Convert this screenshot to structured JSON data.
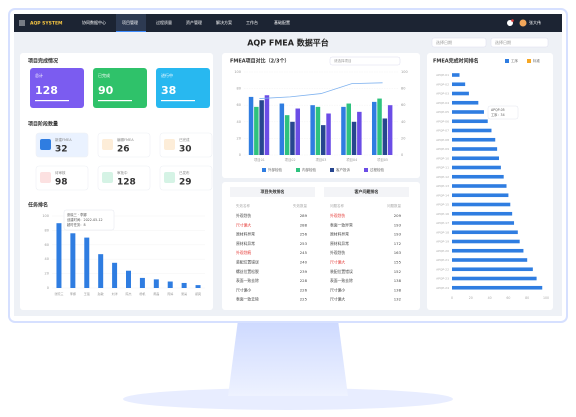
{
  "nav": {
    "logo": "AQP SYSTEM",
    "items": [
      "协同数据中心",
      "项目管理",
      "过程质量",
      "资产管理",
      "解决方案",
      "工作台",
      "基础配置"
    ],
    "active": 1,
    "user": "张大伟"
  },
  "header": {
    "title": "AQP FMEA 数据平台",
    "date_start": "选择日期",
    "date_end": "选择日期"
  },
  "project_status": {
    "title": "项目完成情况",
    "cards": [
      {
        "label": "总计",
        "value": 128
      },
      {
        "label": "已完成",
        "value": 90
      },
      {
        "label": "进行中",
        "value": 38
      }
    ]
  },
  "stages": {
    "title": "项目阶段数量",
    "cards": [
      {
        "label": "新建FMEA",
        "value": 32
      },
      {
        "label": "编辑FMEA",
        "value": 26
      },
      {
        "label": "已完成",
        "value": 30
      },
      {
        "label": "待审核",
        "value": 98
      },
      {
        "label": "审批中",
        "value": 128
      },
      {
        "label": "已发布",
        "value": 29
      }
    ]
  },
  "chart_data": [
    {
      "type": "bar",
      "title": "任务排名",
      "categories": [
        "张晓三",
        "李娜",
        "王强",
        "赵敏",
        "刘洋",
        "陈杰",
        "杨帆",
        "黄磊",
        "周婷",
        "吴昊",
        "郑爽"
      ],
      "values": [
        90,
        76,
        70,
        47,
        35,
        24,
        14,
        12,
        9,
        7,
        4
      ],
      "color": "#2f7de1",
      "ylim": [
        0,
        100
      ],
      "yticks": [
        0,
        20,
        40,
        60,
        80,
        100
      ],
      "tooltip": [
        "张晓三 · 李娜",
        "创建时间：2022-05-12",
        "超时任务：8"
      ]
    },
    {
      "type": "grouped-bar",
      "title": "FMEA项目对比（2/3个）",
      "select_label": "请选择项目",
      "categories": [
        "项目01",
        "项目02",
        "项目03",
        "项目04",
        "项目05"
      ],
      "series": [
        {
          "name": "外部检验",
          "color": "#2f7de1",
          "values": [
            70,
            62,
            60,
            58,
            64
          ]
        },
        {
          "name": "内部检验",
          "color": "#2ec27e",
          "values": [
            58,
            48,
            58,
            62,
            68
          ]
        },
        {
          "name": "客户投诉",
          "color": "#27468f",
          "values": [
            66,
            40,
            36,
            40,
            44
          ]
        },
        {
          "name": "过程检验",
          "color": "#6b4de6",
          "values": [
            72,
            56,
            50,
            52,
            60
          ]
        }
      ],
      "line": {
        "color": "#7fb2ef",
        "axis": "y2",
        "values": [
          68,
          70,
          74,
          86,
          87
        ]
      },
      "ylim": [
        0,
        100
      ],
      "yticks": [
        0,
        20,
        40,
        60,
        80,
        100
      ],
      "y2lim": [
        0,
        100
      ],
      "y2ticks": [
        0,
        20,
        40,
        60,
        80,
        100
      ],
      "grid": true
    },
    {
      "type": "hbar",
      "title": "FMEA完成时间排名",
      "legend": [
        {
          "name": "工序",
          "color": "#2f7de1"
        },
        {
          "name": "标准",
          "color": "#f5a623"
        }
      ],
      "categories": [
        "APQP-01",
        "APQP-02",
        "APQP-03",
        "APQP-04",
        "APQP-05",
        "APQP-06",
        "APQP-07",
        "APQP-08",
        "APQP-09",
        "APQP-10",
        "APQP-11",
        "APQP-12",
        "APQP-13",
        "APQP-14",
        "APQP-15",
        "APQP-16",
        "APQP-17",
        "APQP-18",
        "APQP-19",
        "APQP-20",
        "APQP-21",
        "APQP-22",
        "APQP-23",
        "APQP-24"
      ],
      "values": [
        8,
        14,
        18,
        28,
        34,
        38,
        42,
        46,
        48,
        50,
        52,
        55,
        58,
        60,
        62,
        64,
        66,
        70,
        72,
        76,
        80,
        86,
        90,
        96
      ],
      "xlim": [
        0,
        100
      ],
      "xticks": [
        0,
        20,
        40,
        60,
        80,
        100
      ],
      "tooltip": [
        "APQP-05",
        "工序：34"
      ]
    }
  ],
  "tables": [
    {
      "title": "项目失效排名",
      "columns": [
        "失效名称",
        "失效数量"
      ],
      "highlight": [
        1,
        4
      ],
      "rows": [
        [
          "外观划伤",
          289
        ],
        [
          "尺寸偏大",
          288
        ],
        [
          "原材料异常",
          256
        ],
        [
          "原材料异常",
          253
        ],
        [
          "外观划痕",
          245
        ],
        [
          "装配位置错误",
          240
        ],
        [
          "螺丝位置松脱",
          239
        ],
        [
          "表面一致去除",
          228
        ],
        [
          "尺寸偏小",
          226
        ],
        [
          "表面一致去除",
          225
        ]
      ]
    },
    {
      "title": "客户问题排名",
      "columns": [
        "问题名称",
        "问题数量"
      ],
      "highlight": [
        0,
        5
      ],
      "rows": [
        [
          "外观划伤",
          209
        ],
        [
          "表面一致异常",
          193
        ],
        [
          "原材料异常",
          193
        ],
        [
          "原材料异常",
          172
        ],
        [
          "外观划伤",
          163
        ],
        [
          "尺寸偏大",
          155
        ],
        [
          "装配位置错误",
          152
        ],
        [
          "表面一致去除",
          138
        ],
        [
          "尺寸偏小",
          138
        ],
        [
          "尺寸偏大",
          132
        ]
      ]
    }
  ]
}
